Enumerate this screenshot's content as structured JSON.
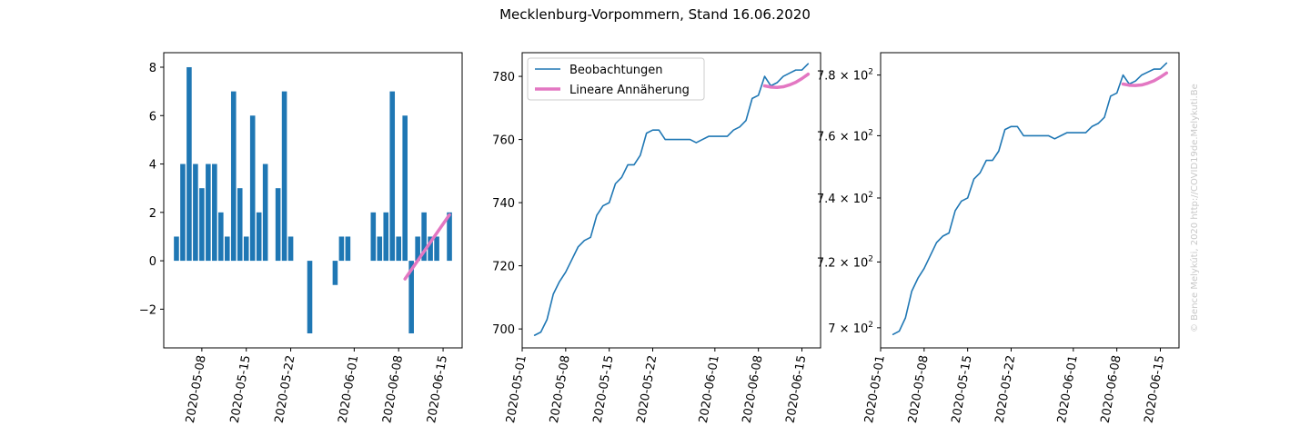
{
  "title": "Mecklenburg-Vorpommern, Stand 16.06.2020",
  "watermark": "© Bence Melykúti, 2020  http://COVID19de.Melykuti.Be",
  "colors": {
    "observed": "#1f77b4",
    "fit": "#e377c2",
    "axis": "#000000"
  },
  "chart_data": [
    {
      "type": "bar",
      "x_dates": [
        "2020-05-04",
        "2020-05-05",
        "2020-05-06",
        "2020-05-07",
        "2020-05-08",
        "2020-05-09",
        "2020-05-10",
        "2020-05-11",
        "2020-05-12",
        "2020-05-13",
        "2020-05-14",
        "2020-05-15",
        "2020-05-16",
        "2020-05-17",
        "2020-05-18",
        "2020-05-19",
        "2020-05-20",
        "2020-05-21",
        "2020-05-22",
        "2020-05-23",
        "2020-05-24",
        "2020-05-25",
        "2020-05-26",
        "2020-05-27",
        "2020-05-28",
        "2020-05-29",
        "2020-05-30",
        "2020-05-31",
        "2020-06-01",
        "2020-06-02",
        "2020-06-03",
        "2020-06-04",
        "2020-06-05",
        "2020-06-06",
        "2020-06-07",
        "2020-06-08",
        "2020-06-09",
        "2020-06-10",
        "2020-06-11",
        "2020-06-12",
        "2020-06-13",
        "2020-06-14",
        "2020-06-15",
        "2020-06-16"
      ],
      "values": [
        1,
        4,
        8,
        4,
        3,
        4,
        4,
        2,
        1,
        7,
        3,
        1,
        6,
        2,
        4,
        0,
        3,
        7,
        1,
        0,
        0,
        -3,
        0,
        0,
        0,
        -1,
        1,
        1,
        0,
        0,
        0,
        2,
        1,
        2,
        7,
        1,
        6,
        -3,
        1,
        2,
        1,
        1,
        0,
        2
      ],
      "fit": {
        "name": "Lineare Annäherung",
        "x": [
          "2020-06-09",
          "2020-06-16"
        ],
        "y": [
          -0.75,
          1.9
        ]
      },
      "ylim": [
        -3.6,
        8.6
      ],
      "yticks": [
        -2,
        0,
        2,
        4,
        6,
        8
      ],
      "ytick_labels": [
        "−2",
        "0",
        "2",
        "4",
        "6",
        "8"
      ],
      "xlim": [
        "2020-05-02",
        "2020-06-18"
      ],
      "xticks": [
        "2020-05-08",
        "2020-05-15",
        "2020-05-22",
        "2020-06-01",
        "2020-06-08",
        "2020-06-15"
      ]
    },
    {
      "type": "line",
      "series": [
        {
          "name": "Beobachtungen",
          "x": [
            "2020-05-03",
            "2020-05-04",
            "2020-05-05",
            "2020-05-06",
            "2020-05-07",
            "2020-05-08",
            "2020-05-09",
            "2020-05-10",
            "2020-05-11",
            "2020-05-12",
            "2020-05-13",
            "2020-05-14",
            "2020-05-15",
            "2020-05-16",
            "2020-05-17",
            "2020-05-18",
            "2020-05-19",
            "2020-05-20",
            "2020-05-21",
            "2020-05-22",
            "2020-05-23",
            "2020-05-24",
            "2020-05-25",
            "2020-05-26",
            "2020-05-27",
            "2020-05-28",
            "2020-05-29",
            "2020-05-30",
            "2020-05-31",
            "2020-06-01",
            "2020-06-02",
            "2020-06-03",
            "2020-06-04",
            "2020-06-05",
            "2020-06-06",
            "2020-06-07",
            "2020-06-08",
            "2020-06-09",
            "2020-06-10",
            "2020-06-11",
            "2020-06-12",
            "2020-06-13",
            "2020-06-14",
            "2020-06-15",
            "2020-06-16"
          ],
          "y": [
            698,
            699,
            703,
            711,
            715,
            718,
            722,
            726,
            728,
            729,
            736,
            739,
            740,
            746,
            748,
            752,
            752,
            755,
            762,
            763,
            763,
            760,
            760,
            760,
            760,
            760,
            759,
            760,
            761,
            761,
            761,
            761,
            763,
            764,
            766,
            773,
            774,
            780,
            777,
            778,
            780,
            781,
            782,
            782,
            784
          ]
        },
        {
          "name": "Lineare Annäherung",
          "x": [
            "2020-06-09",
            "2020-06-10",
            "2020-06-11",
            "2020-06-12",
            "2020-06-13",
            "2020-06-14",
            "2020-06-15",
            "2020-06-16"
          ],
          "y": [
            777.0,
            776.6,
            776.5,
            776.7,
            777.3,
            778.1,
            779.3,
            780.7
          ]
        }
      ],
      "legend": "top-left",
      "ylim": [
        694,
        787.5
      ],
      "yticks": [
        700,
        720,
        740,
        760,
        780
      ],
      "ytick_labels": [
        "700",
        "720",
        "740",
        "760",
        "780"
      ],
      "xlim": [
        "2020-05-01",
        "2020-06-18"
      ],
      "xticks": [
        "2020-05-01",
        "2020-05-08",
        "2020-05-15",
        "2020-05-22",
        "2020-06-01",
        "2020-06-08",
        "2020-06-15"
      ]
    },
    {
      "type": "line",
      "yscale": "log",
      "series_from_panel": 2,
      "ylim": [
        694,
        787.5
      ],
      "yticks": [
        700,
        720,
        740,
        760,
        780
      ],
      "ytick_labels": [
        {
          "base": "7",
          "mult": "× 10",
          "exp": "2"
        },
        {
          "base": "7.2",
          "mult": "× 10",
          "exp": "2"
        },
        {
          "base": "7.4",
          "mult": "× 10",
          "exp": "2"
        },
        {
          "base": "7.6",
          "mult": "× 10",
          "exp": "2"
        },
        {
          "base": "7.8",
          "mult": "× 10",
          "exp": "2"
        }
      ],
      "xlim": [
        "2020-05-01",
        "2020-06-18"
      ],
      "xticks": [
        "2020-05-01",
        "2020-05-08",
        "2020-05-15",
        "2020-05-22",
        "2020-06-01",
        "2020-06-08",
        "2020-06-15"
      ]
    }
  ]
}
